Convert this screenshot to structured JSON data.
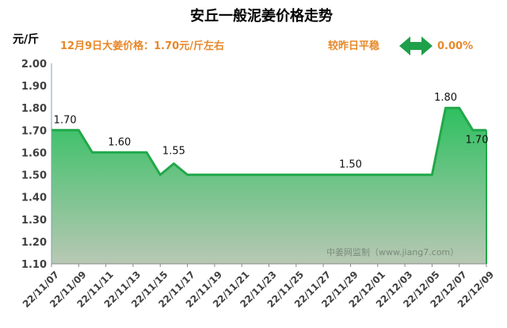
{
  "header": {
    "title": "安丘一般泥姜价格走势",
    "unit": "元/斤",
    "price_text": "12月9日大姜价格：1.70元/斤左右",
    "compare_label": "较昨日平稳",
    "change_value": "0.00%",
    "watermark": "中姜网监制（www.jiang7.com）"
  },
  "colors": {
    "title": "#000000",
    "accent_orange": "#e8882a",
    "arrow_green": "#1fa04a",
    "line": "#22a84a",
    "fill_top": "#2ec060",
    "fill_bottom": "#b8c8b4",
    "axis_text": "#404040"
  },
  "chart_data": {
    "type": "area",
    "title": "安丘一般泥姜价格走势",
    "ylabel": "元/斤",
    "xlabel": "",
    "ylim": [
      1.1,
      2.0
    ],
    "yticks": [
      "2.00",
      "1.90",
      "1.80",
      "1.70",
      "1.60",
      "1.50",
      "1.40",
      "1.30",
      "1.20",
      "1.10"
    ],
    "x": [
      "22/11/07",
      "22/11/08",
      "22/11/09",
      "22/11/10",
      "22/11/11",
      "22/11/12",
      "22/11/13",
      "22/11/14",
      "22/11/15",
      "22/11/16",
      "22/11/17",
      "22/11/18",
      "22/11/19",
      "22/11/20",
      "22/11/21",
      "22/11/22",
      "22/11/23",
      "22/11/24",
      "22/11/25",
      "22/11/26",
      "22/11/27",
      "22/11/28",
      "22/11/29",
      "22/11/30",
      "22/12/01",
      "22/12/02",
      "22/12/03",
      "22/12/04",
      "22/12/05",
      "22/12/06",
      "22/12/07",
      "22/12/08",
      "22/12/09"
    ],
    "xtick_labels": [
      "22/11/07",
      "22/11/09",
      "22/11/11",
      "22/11/13",
      "22/11/15",
      "22/11/17",
      "22/11/19",
      "22/11/21",
      "22/11/23",
      "22/11/25",
      "22/11/27",
      "22/11/29",
      "22/12/01",
      "22/12/03",
      "22/12/05",
      "22/12/07",
      "22/12/09"
    ],
    "values": [
      1.7,
      1.7,
      1.7,
      1.6,
      1.6,
      1.6,
      1.6,
      1.6,
      1.5,
      1.55,
      1.5,
      1.5,
      1.5,
      1.5,
      1.5,
      1.5,
      1.5,
      1.5,
      1.5,
      1.5,
      1.5,
      1.5,
      1.5,
      1.5,
      1.5,
      1.5,
      1.5,
      1.5,
      1.5,
      1.8,
      1.8,
      1.7,
      1.7
    ],
    "data_labels": [
      {
        "index": 1,
        "text": "1.70"
      },
      {
        "index": 5,
        "text": "1.60"
      },
      {
        "index": 9,
        "text": "1.55"
      },
      {
        "index": 22,
        "text": "1.50"
      },
      {
        "index": 29,
        "text": "1.80"
      },
      {
        "index": 32,
        "text": "1.70"
      }
    ],
    "grid": false
  }
}
